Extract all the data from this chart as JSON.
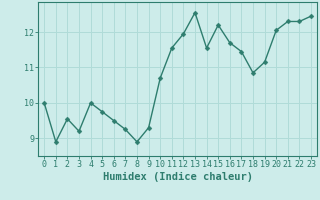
{
  "x": [
    0,
    1,
    2,
    3,
    4,
    5,
    6,
    7,
    8,
    9,
    10,
    11,
    12,
    13,
    14,
    15,
    16,
    17,
    18,
    19,
    20,
    21,
    22,
    23
  ],
  "y": [
    10.0,
    8.9,
    9.55,
    9.2,
    10.0,
    9.75,
    9.5,
    9.25,
    8.9,
    9.3,
    10.7,
    11.55,
    11.95,
    12.55,
    11.55,
    12.2,
    11.7,
    11.45,
    10.85,
    11.15,
    12.05,
    12.3,
    12.3,
    12.45
  ],
  "line_color": "#2e7d6e",
  "marker": "D",
  "marker_size": 2.5,
  "bg_color": "#cdecea",
  "grid_color": "#b0dbd8",
  "tick_color": "#2e7d6e",
  "xlabel": "Humidex (Indice chaleur)",
  "xlabel_fontsize": 7.5,
  "yticks": [
    9,
    10,
    11,
    12
  ],
  "xticks": [
    0,
    1,
    2,
    3,
    4,
    5,
    6,
    7,
    8,
    9,
    10,
    11,
    12,
    13,
    14,
    15,
    16,
    17,
    18,
    19,
    20,
    21,
    22,
    23
  ],
  "ylim": [
    8.5,
    12.85
  ],
  "xlim": [
    -0.5,
    23.5
  ],
  "tick_fontsize": 6.0,
  "linewidth": 1.0
}
